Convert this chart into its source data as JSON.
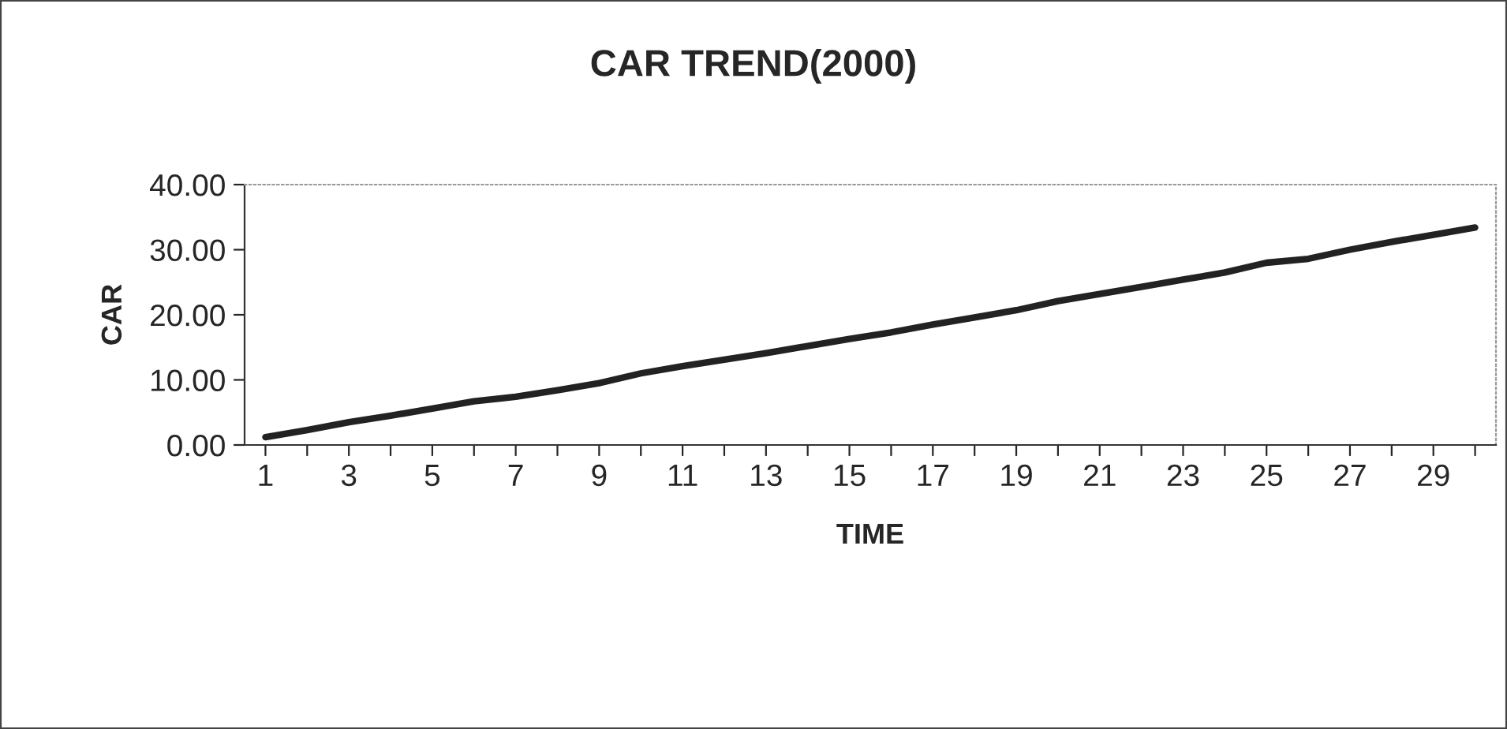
{
  "chart_data": {
    "type": "line",
    "title": "CAR TREND(2000)",
    "xlabel": "TIME",
    "ylabel": "CAR",
    "categories": [
      "1",
      null,
      "3",
      null,
      "5",
      null,
      "7",
      null,
      "9",
      null,
      "11",
      null,
      "13",
      null,
      "15",
      null,
      "17",
      null,
      "19",
      null,
      "21",
      null,
      "23",
      null,
      "25",
      null,
      "27",
      null,
      "29",
      null
    ],
    "series": [
      {
        "color": "#222222",
        "values": [
          1.2,
          2.3,
          3.5,
          4.5,
          5.6,
          6.7,
          7.4,
          8.4,
          9.5,
          11.0,
          12.1,
          13.1,
          14.1,
          15.2,
          16.3,
          17.3,
          18.5,
          19.6,
          20.7,
          22.1,
          23.2,
          24.3,
          25.4,
          26.5,
          28.0,
          28.6,
          30.0,
          31.2,
          32.3,
          33.4
        ]
      }
    ],
    "ylim": [
      0,
      40
    ],
    "yticks": [
      {
        "value": 0,
        "label": "0.00"
      },
      {
        "value": 10,
        "label": "10.00"
      },
      {
        "value": 20,
        "label": "20.00"
      },
      {
        "value": 30,
        "label": "30.00"
      },
      {
        "value": 40,
        "label": "40.00"
      }
    ],
    "grid": false,
    "marker": "none",
    "line_style": "solid"
  }
}
